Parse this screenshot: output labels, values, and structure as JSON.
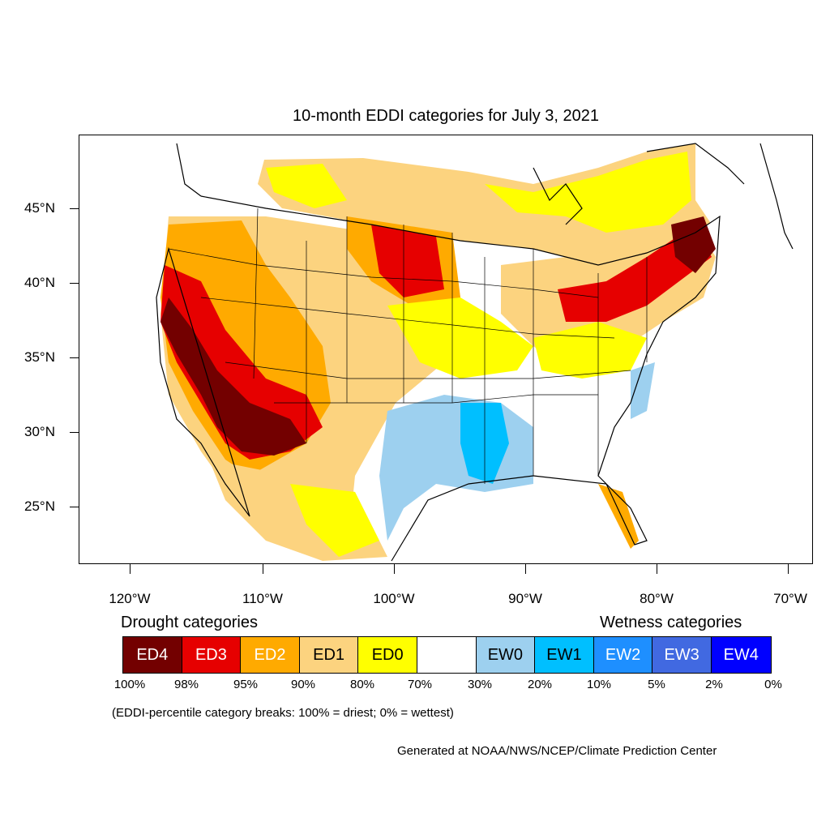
{
  "title": "10-month EDDI categories for July 3, 2021",
  "y_axis": [
    "45°N",
    "40°N",
    "35°N",
    "30°N",
    "25°N"
  ],
  "x_axis": [
    "120°W",
    "110°W",
    "100°W",
    "90°W",
    "80°W",
    "70°W"
  ],
  "legend": {
    "drought_title": "Drought categories",
    "wetness_title": "Wetness categories",
    "categories": [
      {
        "label": "ED4",
        "color": "#730000",
        "text_color": "#ffffff"
      },
      {
        "label": "ED3",
        "color": "#e60000",
        "text_color": "#ffffff"
      },
      {
        "label": "ED2",
        "color": "#ffaa00",
        "text_color": "#ffffff"
      },
      {
        "label": "ED1",
        "color": "#fcd37f",
        "text_color": "#000000"
      },
      {
        "label": "ED0",
        "color": "#ffff00",
        "text_color": "#000000"
      },
      {
        "label": "",
        "color": "#ffffff",
        "text_color": "#000000"
      },
      {
        "label": "EW0",
        "color": "#9dd0ef",
        "text_color": "#000000"
      },
      {
        "label": "EW1",
        "color": "#00bfff",
        "text_color": "#000000"
      },
      {
        "label": "EW2",
        "color": "#1e8fff",
        "text_color": "#ffffff"
      },
      {
        "label": "EW3",
        "color": "#4169e1",
        "text_color": "#ffffff"
      },
      {
        "label": "EW4",
        "color": "#0000ff",
        "text_color": "#ffffff"
      }
    ],
    "breaks": [
      "100%",
      "98%",
      "95%",
      "90%",
      "80%",
      "70%",
      "30%",
      "20%",
      "10%",
      "5%",
      "2%",
      "0%"
    ]
  },
  "note": "(EDDI-percentile category breaks: 100% = driest; 0% = wettest)",
  "credit": "Generated at NOAA/NWS/NCEP/Climate Prediction Center"
}
